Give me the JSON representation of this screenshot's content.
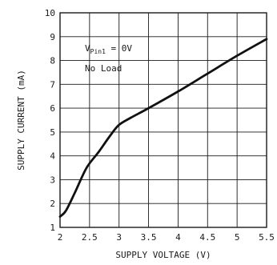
{
  "chart_data": {
    "type": "line",
    "xlabel": "SUPPLY VOLTAGE (V)",
    "ylabel": "SUPPLY CURRENT (mA)",
    "xlim": [
      2,
      5.5
    ],
    "ylim": [
      1,
      10
    ],
    "grid": true,
    "x_ticks": [
      "2",
      "2.5",
      "3",
      "3.5",
      "4",
      "4.5",
      "5",
      "5.5"
    ],
    "y_ticks": [
      "1",
      "2",
      "3",
      "4",
      "5",
      "6",
      "7",
      "8",
      "9",
      "10"
    ],
    "annotation": {
      "line1_prefix": "V",
      "line1_sub": "Pin1",
      "line1_suffix": " = 0V",
      "line2": "No Load"
    },
    "series": [
      {
        "color": "#111111",
        "x": [
          2.0,
          2.1,
          2.25,
          2.45,
          2.65,
          2.85,
          3.0,
          3.2,
          3.5,
          4.0,
          4.5,
          5.0,
          5.5
        ],
        "y": [
          1.45,
          1.7,
          2.45,
          3.5,
          4.15,
          4.85,
          5.3,
          5.6,
          6.0,
          6.7,
          7.45,
          8.2,
          8.9
        ]
      }
    ]
  }
}
